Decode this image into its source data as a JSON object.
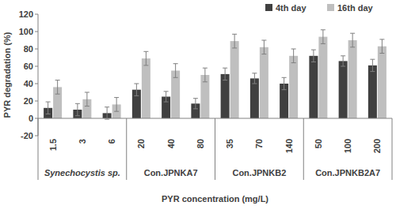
{
  "chart_data": {
    "type": "bar",
    "x_label": "PYR concentration (mg/L)",
    "y_label": "PYR degradation (%)",
    "categories": [
      "1.5",
      "3",
      "6",
      "20",
      "40",
      "80",
      "35",
      "70",
      "140",
      "50",
      "100",
      "200"
    ],
    "group_labels": [
      "Synechocystis sp.",
      "Con.JPNKA7",
      "Con.JPNKB2",
      "Con.JPNKB2A7"
    ],
    "series": [
      {
        "name": "4th day",
        "color": "#404040",
        "values": [
          12,
          10,
          6,
          33,
          25,
          17,
          51,
          46,
          40,
          72,
          66,
          61
        ],
        "errors": [
          7,
          7,
          7,
          7,
          6,
          6,
          7,
          6,
          7,
          7,
          6,
          7
        ]
      },
      {
        "name": "16th day",
        "color": "#bfbfbf",
        "values": [
          36,
          22,
          16,
          69,
          55,
          50,
          89,
          82,
          72,
          94,
          90,
          83
        ],
        "errors": [
          8,
          8,
          8,
          8,
          8,
          8,
          8,
          8,
          8,
          8,
          8,
          8
        ]
      }
    ],
    "ylim": [
      -20,
      120
    ],
    "yticks": [
      -20,
      0,
      20,
      40,
      60,
      80,
      100,
      120
    ],
    "grid": false,
    "legend": "top-right"
  }
}
